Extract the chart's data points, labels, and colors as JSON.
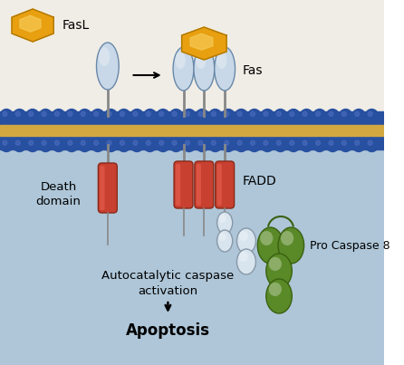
{
  "bg_top": "#f0ede6",
  "bg_bottom": "#aec6d8",
  "membrane_color_inner": "#d4a840",
  "membrane_bead_color": "#2850a0",
  "fasl_label": "FasL",
  "fas_label": "Fas",
  "fadd_label": "FADD",
  "death_domain_label": "Death\ndomain",
  "procaspase_label": "Pro Caspase 8",
  "autocatalytic_label": "Autocatalytic caspase\nactivation",
  "apoptosis_label": "Apoptosis",
  "hexagon_color": "#e8a010",
  "hexagon_edge": "#b07800",
  "receptor_oval_color_top": "#c8d8e8",
  "receptor_oval_color_bot": "#90a8c0",
  "receptor_oval_edge": "#6888a8",
  "death_domain_color": "#c84030",
  "death_domain_edge": "#8a2a18",
  "fadd_white_color": "#d8e4ee",
  "fadd_white_edge": "#8898a8",
  "procaspase_green_color": "#5a8a28",
  "procaspase_green_edge": "#3a6010",
  "stem_color": "#888888"
}
